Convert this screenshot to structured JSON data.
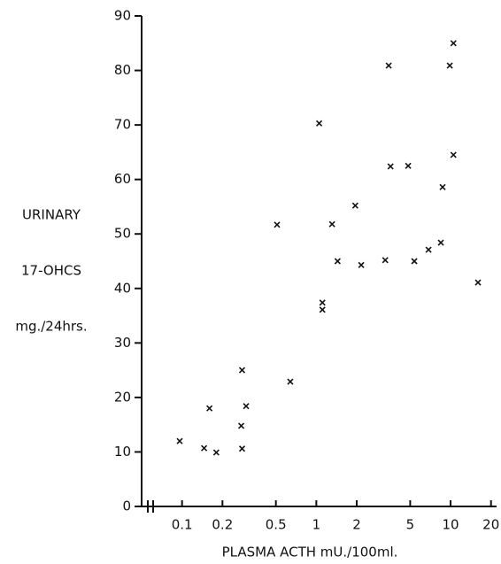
{
  "chart_data": {
    "type": "scatter",
    "ylabel": [
      "URINARY",
      "17-OHCS",
      "mg./24hrs."
    ],
    "xlabel": "PLASMA ACTH mU./100ml.",
    "xscale": "log",
    "color": "#111111",
    "xlim": [
      0.05,
      22
    ],
    "ylim": [
      0,
      90
    ],
    "xticks": [
      0.1,
      0.2,
      0.5,
      1,
      2,
      5,
      10,
      20
    ],
    "yticks": [
      0,
      10,
      20,
      30,
      40,
      50,
      60,
      70,
      80,
      90
    ],
    "x": [
      0.096,
      0.146,
      0.18,
      0.16,
      0.276,
      0.28,
      0.28,
      0.3,
      0.51,
      0.64,
      1.05,
      1.11,
      1.11,
      1.31,
      1.44,
      1.95,
      2.16,
      3.26,
      3.46,
      3.57,
      4.83,
      5.37,
      6.85,
      8.46,
      8.72,
      9.86,
      10.5,
      10.5,
      16.0
    ],
    "y": [
      12.0,
      10.7,
      9.9,
      18.0,
      14.8,
      10.6,
      25.0,
      18.4,
      51.7,
      22.9,
      70.3,
      37.4,
      36.1,
      51.8,
      45.0,
      55.2,
      44.3,
      45.2,
      80.9,
      62.4,
      62.5,
      45.0,
      47.1,
      48.4,
      58.6,
      80.9,
      85.0,
      64.5,
      41.1
    ]
  }
}
